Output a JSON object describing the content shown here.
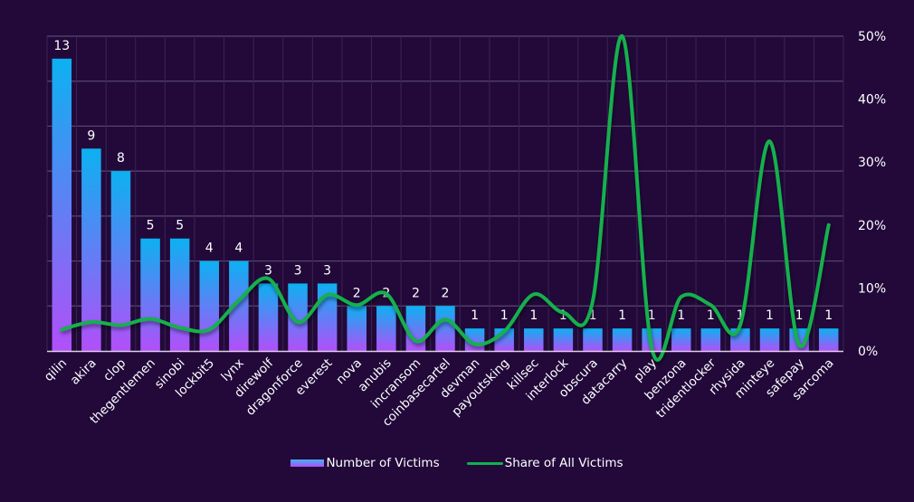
{
  "chart_data": {
    "type": "bar",
    "title": "",
    "xlabel": "",
    "ylabel": "",
    "categories": [
      "qilin",
      "akira",
      "clop",
      "thegentlemen",
      "sinobi",
      "lockbit5",
      "lynx",
      "direwolf",
      "dragonforce",
      "everest",
      "nova",
      "anubis",
      "incransom",
      "coinbasecartel",
      "devman",
      "payoutsking",
      "killsec",
      "interlock",
      "obscura",
      "datacarry",
      "play",
      "benzona",
      "tridentlocker",
      "rhysida",
      "minteye",
      "safepay",
      "sarcoma"
    ],
    "series": [
      {
        "name": "Number of Victims",
        "type": "bar",
        "axis": "left",
        "values": [
          13,
          9,
          8,
          5,
          5,
          4,
          4,
          3,
          3,
          3,
          2,
          2,
          2,
          2,
          1,
          1,
          1,
          1,
          1,
          1,
          1,
          1,
          1,
          1,
          1,
          1,
          1
        ],
        "data_labels": true
      },
      {
        "name": "Share of All Victims",
        "type": "line",
        "smooth": true,
        "axis": "right",
        "values": [
          3.4,
          4.6,
          4.1,
          5.1,
          3.7,
          3.4,
          8.0,
          11.5,
          4.6,
          8.9,
          7.3,
          9.1,
          1.6,
          5.0,
          1.1,
          3.1,
          9.0,
          6.1,
          7.9,
          50.0,
          0.5,
          8.6,
          7.3,
          4.1,
          33.3,
          0.9,
          20.0
        ]
      }
    ],
    "y_left": {
      "min": 0,
      "max": 14,
      "step": 2,
      "tick_labels_visible": false
    },
    "y_right": {
      "min": 0,
      "max": 50,
      "step": 10,
      "tick_labels": [
        "0%",
        "10%",
        "20%",
        "30%",
        "40%",
        "50%"
      ]
    },
    "grid": true,
    "legend": {
      "position": "bottom",
      "entries": [
        "Number of Victims",
        "Share of All Victims"
      ]
    },
    "colors": {
      "background": "#22093a",
      "bar_top": "#0cb1f1",
      "bar_bottom": "#b24ff9",
      "line": "#12b04e",
      "grid": "#5a4870",
      "text": "#ffffff"
    }
  }
}
